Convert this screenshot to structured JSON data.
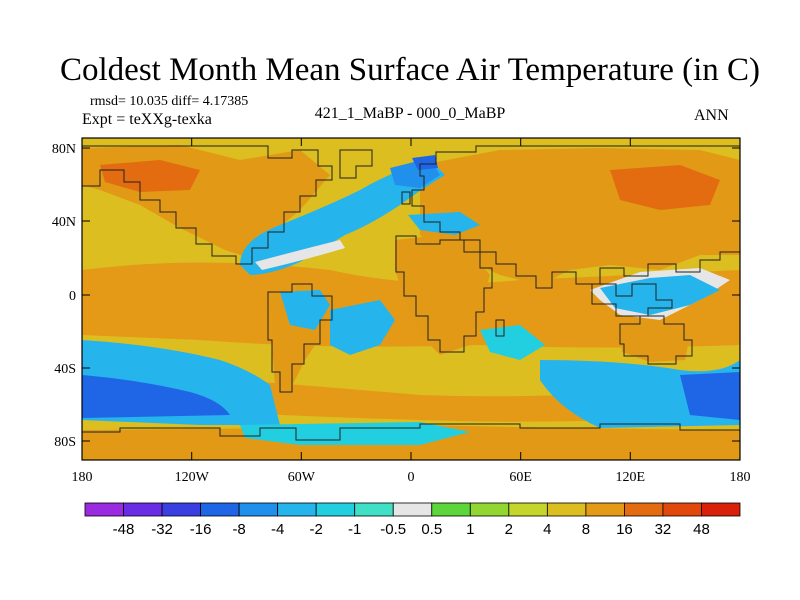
{
  "title": "Coldest Month Mean Surface Air Temperature (in C)",
  "stats": "rmsd= 10.035 diff= 4.17385",
  "experiment": "Expt = teXXg-texka",
  "comparison": "421_1_MaBP - 000_0_MaBP",
  "season": "ANN",
  "axes": {
    "x_ticks": [
      "180",
      "120W",
      "60W",
      "0",
      "60E",
      "120E",
      "180"
    ],
    "y_ticks": [
      "80N",
      "40N",
      "0",
      "40S",
      "80S"
    ]
  },
  "colorbar": {
    "labels": [
      "-48",
      "-32",
      "-16",
      "-8",
      "-4",
      "-2",
      "-1",
      "-0.5",
      "0.5",
      "1",
      "2",
      "4",
      "8",
      "16",
      "32",
      "48"
    ],
    "colors": [
      "#9B2BE0",
      "#6A2DE6",
      "#3A3FE2",
      "#1F66E6",
      "#2190EC",
      "#26B4EC",
      "#22CFE0",
      "#3FE0C6",
      "#E6E6E6",
      "#5CD63A",
      "#92D632",
      "#C4D52C",
      "#DCBE20",
      "#E49A16",
      "#E36C10",
      "#E2480C",
      "#D8200A"
    ]
  },
  "palette": {
    "land_high": "#E29A16",
    "land_hot": "#E36C10",
    "ocean_warm": "#DCBE20",
    "ocean_mid": "#C4D52C",
    "ocean_tropic": "#E49A16",
    "cold_a": "#2190EC",
    "cold_b": "#1F66E6",
    "cold_c": "#26B4EC",
    "cold_d": "#22CFE0",
    "neutral": "#E6E6E6",
    "coast": "#202020"
  }
}
